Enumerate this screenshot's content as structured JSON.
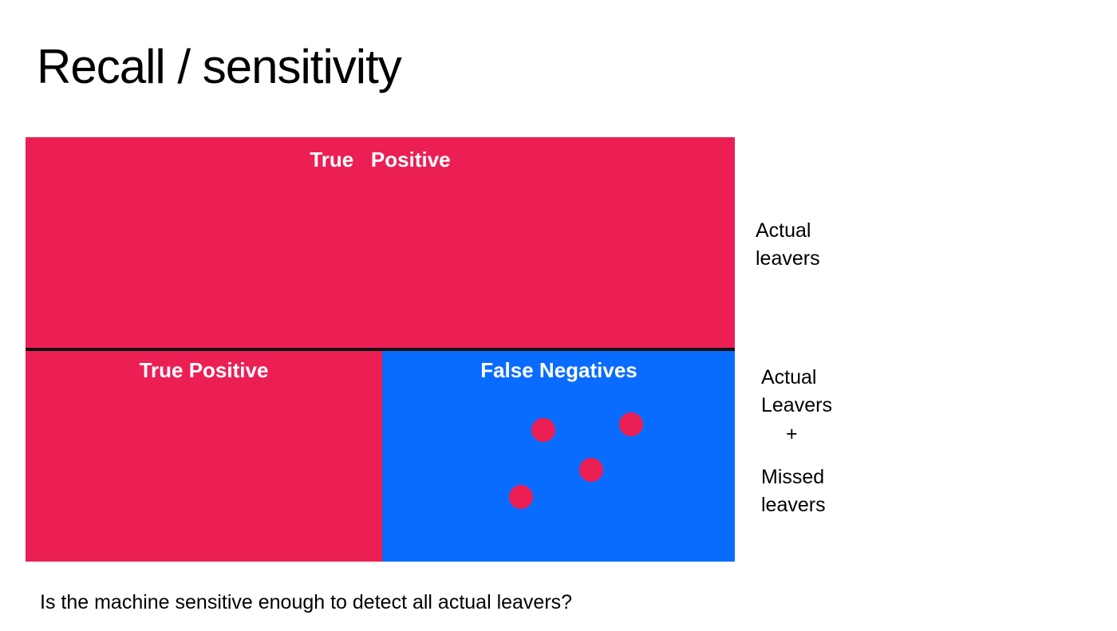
{
  "title": "Recall / sensitivity",
  "colors": {
    "positive": "#ec1f55",
    "negative": "#0a6cff",
    "divider": "#111111"
  },
  "diagram": {
    "top_box": {
      "label": "True   Positive"
    },
    "bottom_left_box": {
      "label": "True Positive"
    },
    "bottom_right_box": {
      "label": "False Negatives",
      "dot_count": 4
    }
  },
  "side_labels": {
    "top": [
      "Actual",
      "leavers"
    ],
    "bottom_part1": [
      "Actual",
      "Leavers"
    ],
    "bottom_operator": "+",
    "bottom_part2": [
      "Missed",
      "leavers"
    ]
  },
  "caption": "Is the machine sensitive enough to detect all actual leavers?"
}
